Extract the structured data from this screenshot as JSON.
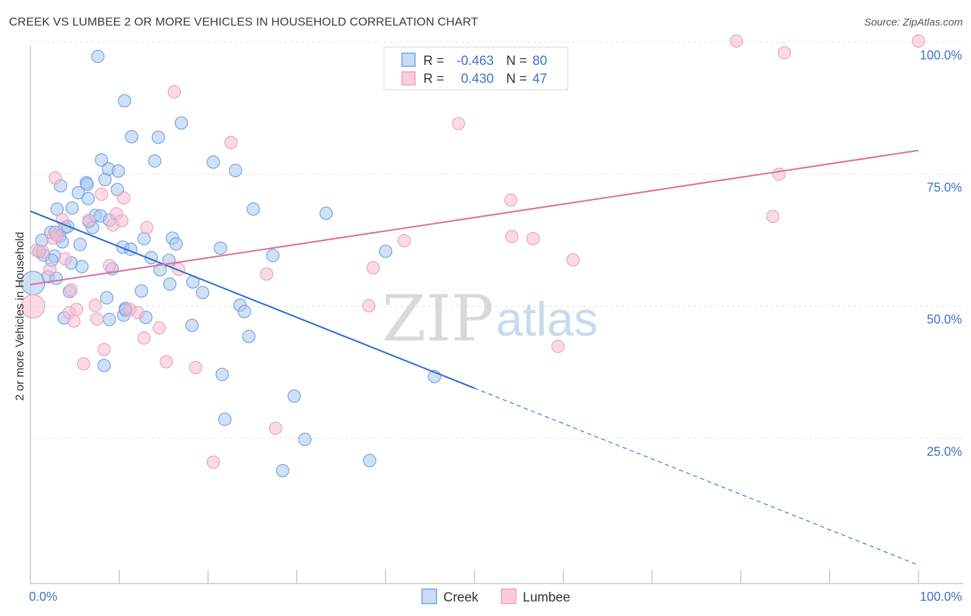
{
  "title": "CREEK VS LUMBEE 2 OR MORE VEHICLES IN HOUSEHOLD CORRELATION CHART",
  "source": "Source: ZipAtlas.com",
  "watermark": {
    "zip": "ZIP",
    "atlas": "atlas"
  },
  "legend_top": [
    {
      "r_label": "R =",
      "r_value": "-0.463",
      "n_label": "N =",
      "n_value": "80"
    },
    {
      "r_label": "R =",
      "r_value": "0.430",
      "n_label": "N =",
      "n_value": "47"
    }
  ],
  "legend_bottom": [
    "Creek",
    "Lumbee"
  ],
  "colors": {
    "creek": "#6fa0e0",
    "creek_line": "#2f6fcf",
    "lumbee": "#f0a0bd",
    "lumbee_line": "#e0709a",
    "tick": "#3f73c4"
  },
  "chart_data": {
    "type": "scatter",
    "xlabel": "",
    "ylabel": "2 or more Vehicles in Household",
    "x_tick_labels": [
      "0.0%",
      "100.0%"
    ],
    "y_tick_labels": [
      "25.0%",
      "50.0%",
      "75.0%",
      "100.0%"
    ],
    "xlim": [
      0,
      100
    ],
    "ylim": [
      0,
      100
    ],
    "grid": true,
    "series": [
      {
        "name": "Creek",
        "color": "#6fa0e0",
        "points": [
          [
            0.3,
            54.4
          ],
          [
            1.3,
            62.5
          ],
          [
            1.5,
            59.7
          ],
          [
            2.0,
            55.6
          ],
          [
            2.3,
            64.0
          ],
          [
            2.7,
            59.5
          ],
          [
            2.4,
            58.7
          ],
          [
            2.8,
            64.0
          ],
          [
            3.0,
            68.4
          ],
          [
            3.3,
            63.2
          ],
          [
            3.4,
            72.8
          ],
          [
            3.6,
            62.2
          ],
          [
            3.8,
            47.8
          ],
          [
            3.9,
            64.9
          ],
          [
            4.2,
            65.1
          ],
          [
            4.4,
            52.8
          ],
          [
            4.6,
            58.2
          ],
          [
            4.7,
            68.6
          ],
          [
            5.4,
            71.5
          ],
          [
            5.6,
            61.7
          ],
          [
            5.8,
            57.5
          ],
          [
            6.3,
            73.4
          ],
          [
            6.4,
            73.1
          ],
          [
            6.5,
            70.4
          ],
          [
            6.6,
            66.0
          ],
          [
            7.0,
            64.9
          ],
          [
            7.3,
            67.2
          ],
          [
            7.6,
            97.3
          ],
          [
            7.9,
            67.1
          ],
          [
            8.0,
            77.7
          ],
          [
            8.4,
            74.0
          ],
          [
            8.3,
            38.8
          ],
          [
            8.6,
            51.6
          ],
          [
            8.8,
            76.0
          ],
          [
            8.9,
            47.5
          ],
          [
            8.9,
            66.3
          ],
          [
            9.2,
            57.1
          ],
          [
            9.8,
            72.1
          ],
          [
            9.9,
            75.6
          ],
          [
            10.4,
            61.2
          ],
          [
            10.6,
            88.9
          ],
          [
            10.5,
            48.3
          ],
          [
            10.7,
            49.6
          ],
          [
            11.4,
            82.1
          ],
          [
            11.3,
            60.8
          ],
          [
            12.5,
            52.9
          ],
          [
            12.8,
            62.8
          ],
          [
            13.0,
            47.9
          ],
          [
            13.6,
            59.2
          ],
          [
            14.0,
            77.5
          ],
          [
            14.4,
            82.0
          ],
          [
            14.6,
            56.9
          ],
          [
            15.6,
            58.7
          ],
          [
            15.7,
            54.2
          ],
          [
            16.0,
            62.9
          ],
          [
            16.4,
            61.8
          ],
          [
            17.0,
            84.7
          ],
          [
            18.3,
            54.6
          ],
          [
            18.2,
            46.4
          ],
          [
            19.4,
            52.6
          ],
          [
            20.6,
            77.3
          ],
          [
            21.4,
            61.0
          ],
          [
            21.6,
            37.1
          ],
          [
            21.9,
            28.6
          ],
          [
            23.1,
            75.7
          ],
          [
            23.6,
            50.2
          ],
          [
            24.1,
            49.0
          ],
          [
            24.6,
            44.3
          ],
          [
            25.1,
            68.4
          ],
          [
            27.3,
            59.6
          ],
          [
            28.4,
            18.9
          ],
          [
            29.7,
            33.0
          ],
          [
            30.9,
            24.8
          ],
          [
            33.3,
            67.6
          ],
          [
            38.2,
            20.8
          ],
          [
            40.0,
            60.4
          ],
          [
            45.5,
            36.7
          ],
          [
            10.7,
            49.3
          ],
          [
            1.0,
            60.4
          ],
          [
            2.9,
            55.3
          ]
        ]
      },
      {
        "name": "Lumbee",
        "color": "#f0a0bd",
        "points": [
          [
            0.3,
            50.0
          ],
          [
            0.7,
            60.6
          ],
          [
            1.4,
            60.3
          ],
          [
            2.2,
            57.0
          ],
          [
            2.5,
            62.9
          ],
          [
            2.8,
            74.3
          ],
          [
            3.0,
            63.4
          ],
          [
            3.6,
            66.4
          ],
          [
            3.9,
            59.0
          ],
          [
            4.4,
            48.8
          ],
          [
            4.6,
            53.1
          ],
          [
            4.9,
            47.2
          ],
          [
            5.2,
            49.4
          ],
          [
            6.0,
            39.1
          ],
          [
            6.6,
            66.3
          ],
          [
            7.3,
            50.2
          ],
          [
            7.5,
            47.6
          ],
          [
            8.0,
            71.2
          ],
          [
            8.3,
            41.8
          ],
          [
            8.9,
            57.7
          ],
          [
            9.3,
            65.4
          ],
          [
            9.7,
            67.5
          ],
          [
            10.3,
            66.2
          ],
          [
            10.5,
            70.5
          ],
          [
            11.2,
            49.4
          ],
          [
            12.1,
            48.8
          ],
          [
            12.8,
            44.0
          ],
          [
            13.1,
            64.9
          ],
          [
            14.5,
            45.9
          ],
          [
            15.3,
            39.5
          ],
          [
            16.2,
            90.6
          ],
          [
            16.7,
            57.0
          ],
          [
            18.6,
            38.4
          ],
          [
            20.6,
            20.5
          ],
          [
            22.6,
            81.0
          ],
          [
            26.6,
            56.1
          ],
          [
            27.6,
            26.9
          ],
          [
            38.1,
            50.1
          ],
          [
            38.6,
            57.3
          ],
          [
            42.1,
            62.4
          ],
          [
            48.2,
            84.6
          ],
          [
            54.1,
            70.1
          ],
          [
            54.2,
            63.2
          ],
          [
            56.6,
            62.8
          ],
          [
            59.4,
            42.4
          ],
          [
            61.1,
            58.8
          ],
          [
            79.5,
            100.2
          ]
        ]
      },
      {
        "name": "",
        "color": "#f0a0bd",
        "points": [
          [
            83.6,
            67.0
          ],
          [
            84.9,
            98.0
          ],
          [
            100.0,
            100.2
          ],
          [
            84.3,
            75.0
          ]
        ]
      }
    ],
    "trendlines": [
      {
        "series": "Creek",
        "x": [
          0,
          50
        ],
        "y": [
          68.0,
          34.5
        ],
        "style": "solid"
      },
      {
        "series": "Creek",
        "x": [
          50,
          100
        ],
        "y": [
          34.5,
          1.0
        ],
        "style": "dashed"
      },
      {
        "series": "Lumbee",
        "x": [
          0,
          100
        ],
        "y": [
          54.1,
          79.5
        ],
        "style": "solid"
      }
    ],
    "legend": "top-center"
  }
}
